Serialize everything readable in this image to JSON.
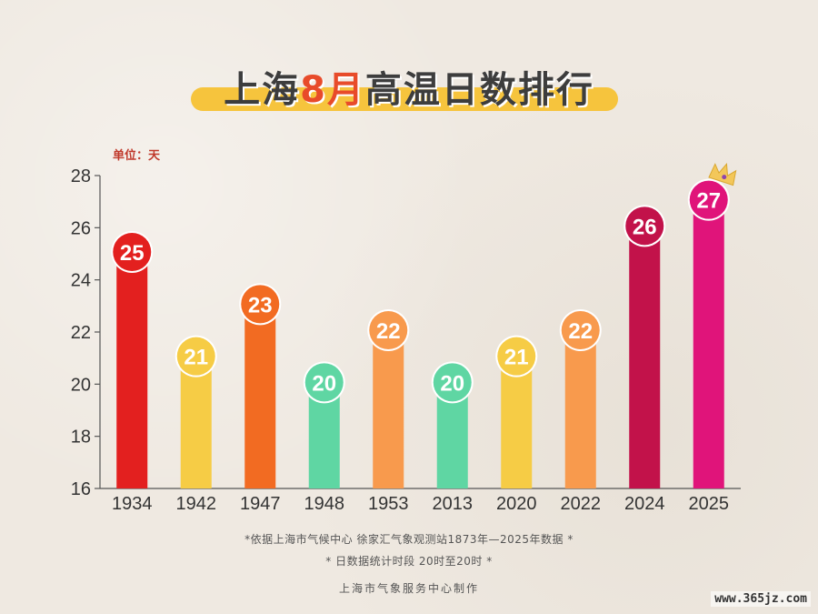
{
  "title": {
    "prefix": "上海",
    "highlight": "8月",
    "suffix": "高温日数排行"
  },
  "unit_label": "单位：天",
  "notes": {
    "source": "*依据上海市气候中心 徐家汇气象观测站1873年—2025年数据 *",
    "definition": "* 日数据统计时段 20时至20时 *",
    "maker": "上海市气象服务中心制作"
  },
  "watermark": "www.365jz.com",
  "colors": {
    "red": "#e3201f",
    "yellow": "#f6cc45",
    "orange_dark": "#f26b22",
    "green": "#5fd6a3",
    "orange_light": "#f89a4d",
    "crimson": "#c2124a",
    "magenta": "#e0147a",
    "crown": "#f3c75a"
  },
  "chart_data": {
    "type": "bar",
    "categories": [
      "1934",
      "1942",
      "1947",
      "1948",
      "1953",
      "2013",
      "2020",
      "2022",
      "2024",
      "2025"
    ],
    "values": [
      25,
      21,
      23,
      20,
      22,
      20,
      21,
      22,
      26,
      27
    ],
    "bar_colors": [
      "red",
      "yellow",
      "orange_dark",
      "green",
      "orange_light",
      "green",
      "yellow",
      "orange_light",
      "crimson",
      "magenta"
    ],
    "ylim": [
      16,
      28
    ],
    "yticks": [
      16,
      18,
      20,
      22,
      24,
      26,
      28
    ],
    "grid": false,
    "crowned_category": "2025"
  }
}
